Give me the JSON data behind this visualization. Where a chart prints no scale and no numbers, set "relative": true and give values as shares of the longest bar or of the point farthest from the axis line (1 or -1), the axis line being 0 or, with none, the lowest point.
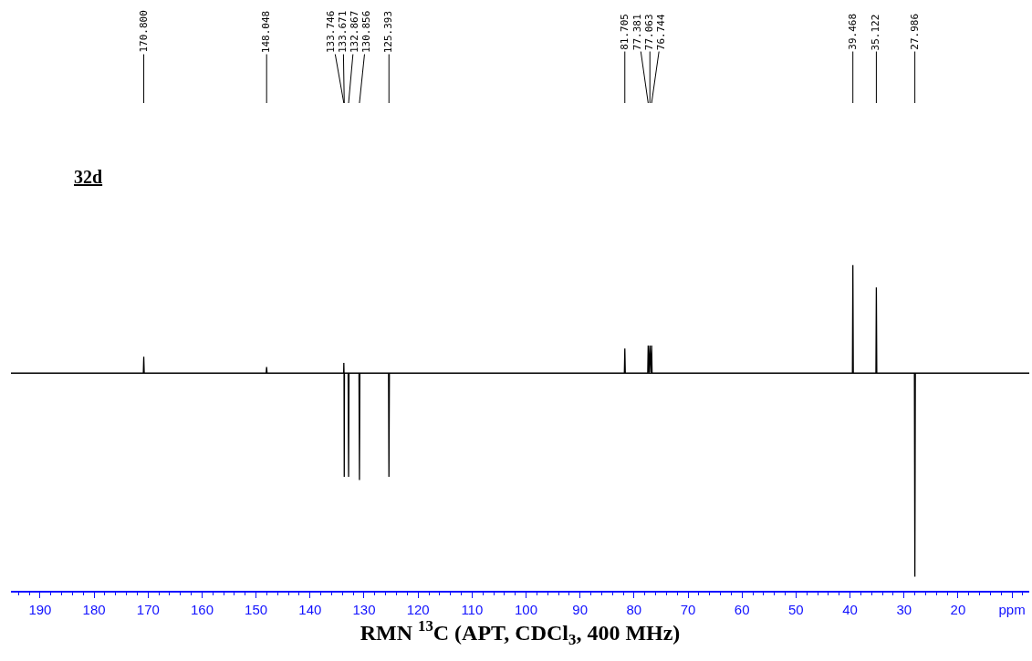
{
  "chart_data": {
    "type": "line",
    "xlabel": "RMN $^{13}$C (APT, CDCl$_{3}$, 400 MHz)",
    "relative": true,
    "marker": "none",
    "line_style": "solid",
    "xlim": [
      195.4,
      6.8
    ],
    "xticks": [
      190,
      180,
      170,
      160,
      150,
      140,
      130,
      120,
      110,
      100,
      90,
      80,
      70,
      60,
      50,
      40,
      30,
      20,
      {
        "value": 10,
        "label": "ppm"
      }
    ],
    "series": [
      {
        "color": "#000000",
        "x": [
          195.4,
          170.88,
          170.8,
          170.72,
          148.13,
          148.048,
          147.97,
          133.78,
          133.746,
          133.71,
          133.671,
          133.63,
          132.95,
          132.867,
          132.79,
          130.94,
          130.856,
          130.78,
          125.47,
          125.393,
          125.31,
          81.79,
          81.705,
          81.62,
          77.46,
          77.381,
          77.22,
          77.063,
          76.9,
          76.744,
          76.66,
          39.55,
          39.468,
          39.39,
          35.2,
          35.122,
          35.04,
          28.07,
          27.986,
          27.9,
          6.8
        ],
        "values": [
          0,
          0,
          0.08,
          0,
          0,
          0.03,
          0,
          0,
          0.05,
          0,
          -0.51,
          0,
          0,
          -0.51,
          0,
          0,
          -0.525,
          0,
          0,
          -0.51,
          0,
          0,
          0.12,
          0,
          0,
          0.135,
          0,
          0.135,
          0,
          0.135,
          0,
          0,
          0.53,
          0,
          0,
          0.42,
          0,
          0,
          -1,
          0,
          0
        ]
      }
    ],
    "annotations": [
      "32d",
      "170.800",
      "148.048",
      "133.746",
      "133.671",
      "132.867",
      "130.856",
      "125.393",
      "81.705",
      "77.381",
      "77.063",
      "76.744",
      "39.468",
      "35.122",
      "27.986"
    ]
  }
}
